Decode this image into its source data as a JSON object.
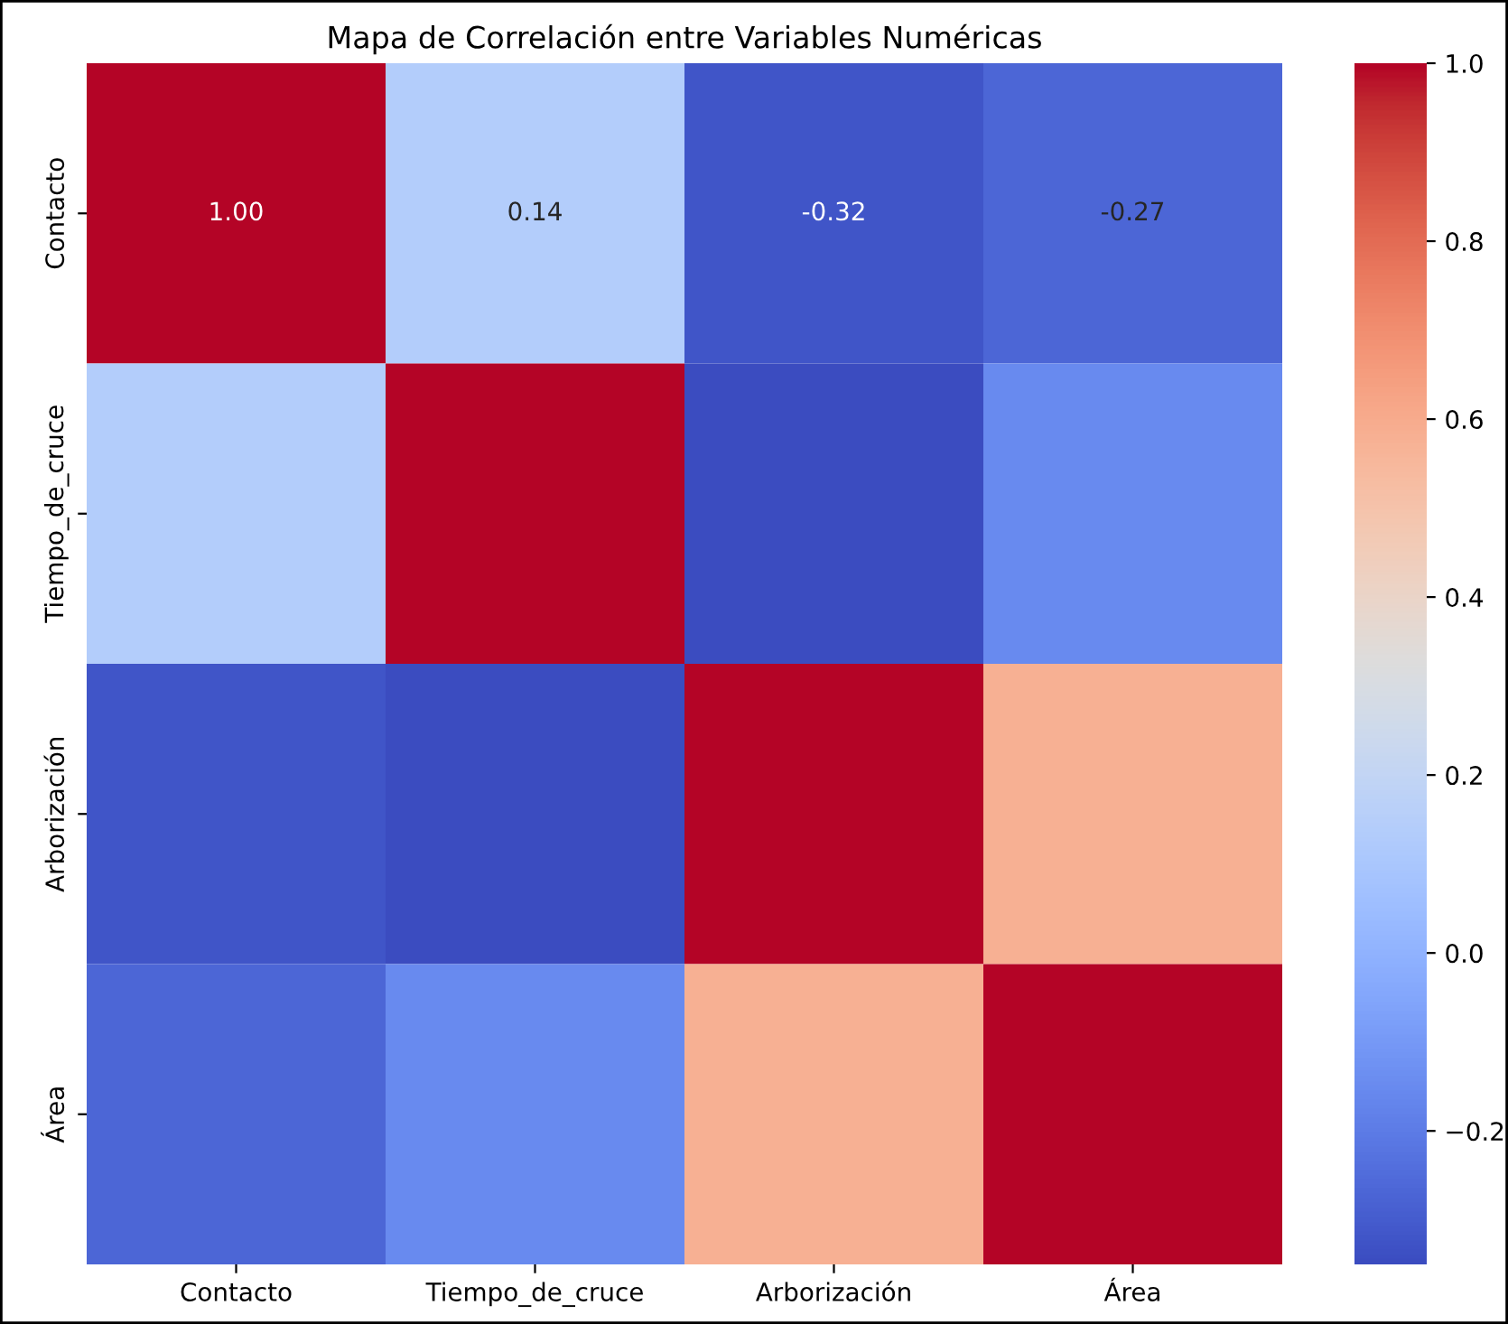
{
  "chart_data": {
    "type": "heatmap",
    "title": "Mapa de Correlación entre Variables Numéricas",
    "categories": [
      "Contacto",
      "Tiempo_de_cruce",
      "Arborización",
      "Área"
    ],
    "y_categories": [
      "Contacto",
      "Tiempo_de_cruce",
      "Arborización",
      "Área"
    ],
    "cells": [
      [
        1.0,
        0.14,
        -0.32,
        -0.27
      ],
      [
        0.14,
        1.0,
        -0.35,
        -0.15
      ],
      [
        -0.32,
        -0.35,
        1.0,
        0.58
      ],
      [
        -0.27,
        -0.15,
        0.58,
        1.0
      ]
    ],
    "cell_labels": [
      [
        "1.00",
        "0.14",
        "-0.32",
        "-0.27"
      ],
      [
        null,
        null,
        null,
        null
      ],
      [
        null,
        null,
        null,
        null
      ],
      [
        null,
        null,
        null,
        null
      ]
    ],
    "clim": [
      -0.35,
      1.0
    ],
    "cticks": [
      {
        "value": -0.2,
        "label": "−0.2"
      },
      {
        "value": 0.0,
        "label": "0.0"
      },
      {
        "value": 0.2,
        "label": "0.2"
      },
      {
        "value": 0.4,
        "label": "0.4"
      },
      {
        "value": 0.6,
        "label": "0.6"
      },
      {
        "value": 0.8,
        "label": "0.8"
      },
      {
        "value": 1.0,
        "label": "1.0"
      }
    ]
  }
}
